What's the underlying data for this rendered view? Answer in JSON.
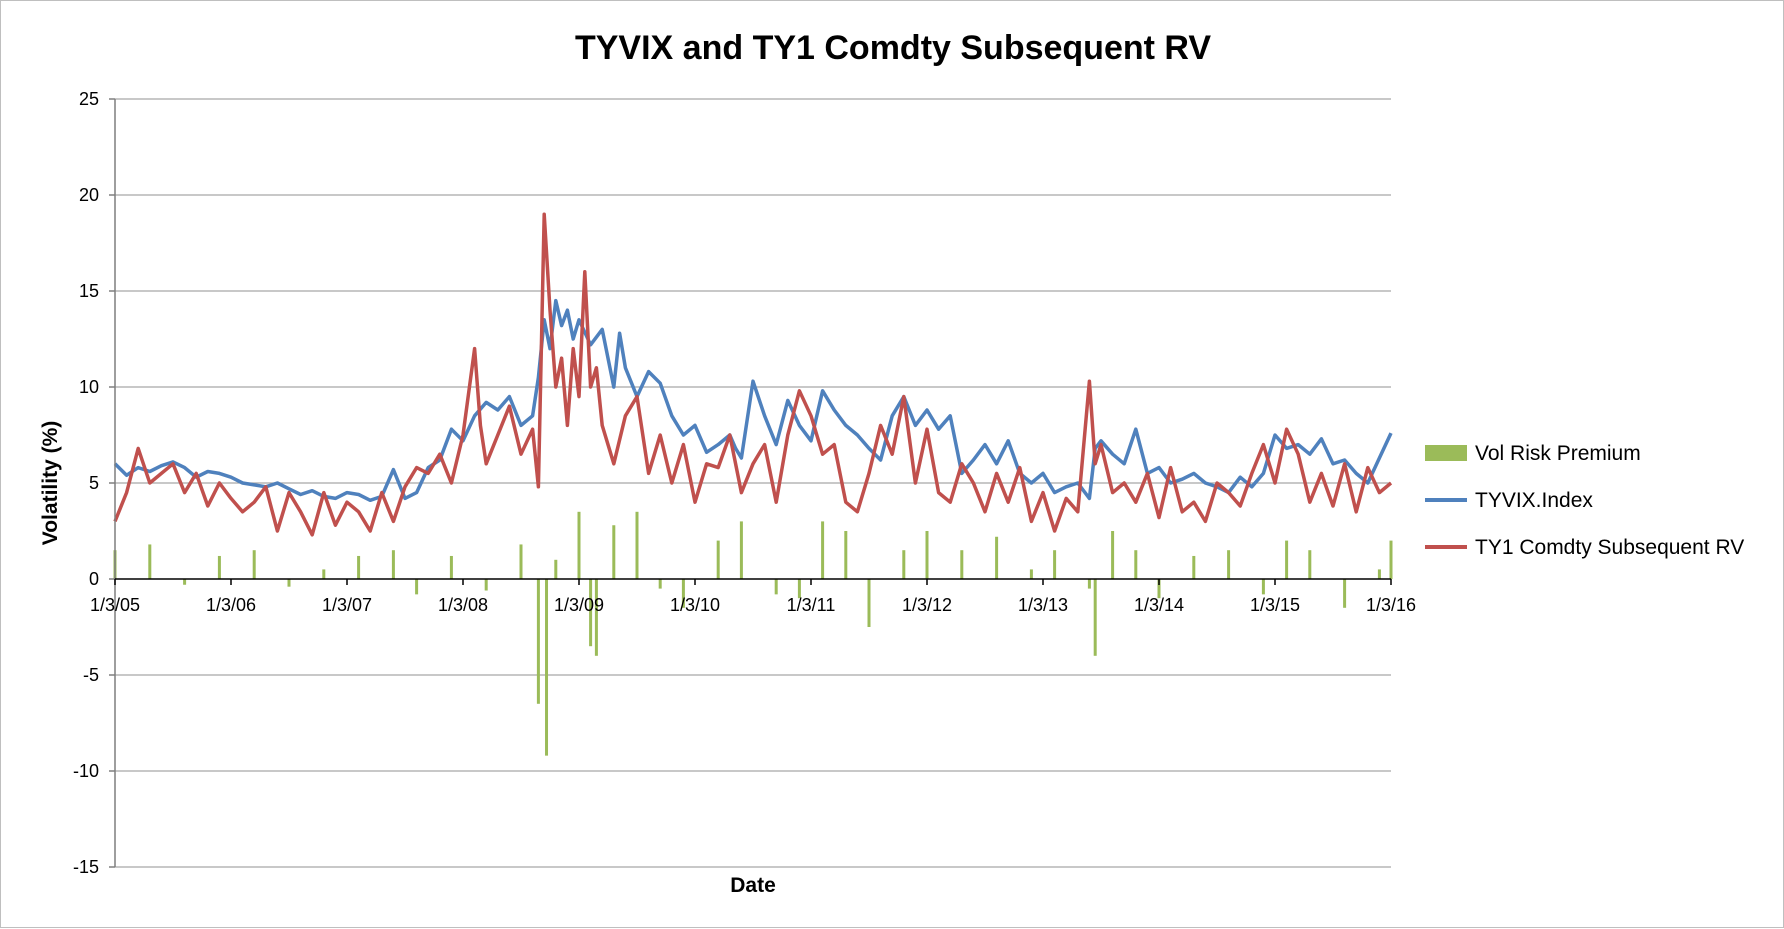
{
  "chart_data": {
    "type": "line",
    "title": "TYVIX and TY1 Comdty Subsequent RV",
    "xlabel": "Date",
    "ylabel": "Volatility (%)",
    "ylim": [
      -15,
      25
    ],
    "yticks": [
      "25",
      "20",
      "15",
      "10",
      "5",
      "0",
      "-5",
      "-10",
      "-15"
    ],
    "xlim": [
      2005.0,
      2016.0
    ],
    "xticks": [
      "1/3/05",
      "1/3/06",
      "1/3/07",
      "1/3/08",
      "1/3/09",
      "1/3/10",
      "1/3/11",
      "1/3/12",
      "1/3/13",
      "1/3/14",
      "1/3/15",
      "1/3/16"
    ],
    "grid": "horizontal",
    "legend_position": "right",
    "colors": {
      "vrp": "#9bbb59",
      "tyvix": "#4f81bd",
      "rv": "#c0504d",
      "grid": "#a6a6a6",
      "axis": "#7f7f7f"
    },
    "series": [
      {
        "name": "Vol Risk Premium",
        "kind": "bar",
        "x": [
          2005.0,
          2005.3,
          2005.6,
          2005.9,
          2006.2,
          2006.5,
          2006.8,
          2007.1,
          2007.4,
          2007.6,
          2007.9,
          2008.2,
          2008.5,
          2008.65,
          2008.72,
          2008.8,
          2009.0,
          2009.1,
          2009.15,
          2009.3,
          2009.5,
          2009.7,
          2009.9,
          2010.2,
          2010.4,
          2010.7,
          2010.9,
          2011.1,
          2011.3,
          2011.5,
          2011.8,
          2012.0,
          2012.3,
          2012.6,
          2012.9,
          2013.1,
          2013.4,
          2013.45,
          2013.6,
          2013.8,
          2014.0,
          2014.3,
          2014.6,
          2014.9,
          2015.1,
          2015.3,
          2015.6,
          2015.9,
          2016.0
        ],
        "values": [
          1.5,
          1.8,
          -0.3,
          1.2,
          1.5,
          -0.4,
          0.5,
          1.2,
          1.5,
          -0.8,
          1.2,
          -0.6,
          1.8,
          -6.5,
          -9.2,
          1.0,
          3.5,
          -3.5,
          -4.0,
          2.8,
          3.5,
          -0.5,
          -1.5,
          2.0,
          3.0,
          -0.8,
          -1.0,
          3.0,
          2.5,
          -2.5,
          1.5,
          2.5,
          1.5,
          2.2,
          0.5,
          1.5,
          -0.5,
          -4.0,
          2.5,
          1.5,
          -1.0,
          1.2,
          1.5,
          -0.8,
          2.0,
          1.5,
          -1.5,
          0.5,
          2.0
        ]
      },
      {
        "name": "TYVIX.Index",
        "kind": "line",
        "x": [
          2005.0,
          2005.1,
          2005.2,
          2005.3,
          2005.4,
          2005.5,
          2005.6,
          2005.7,
          2005.8,
          2005.9,
          2006.0,
          2006.1,
          2006.2,
          2006.3,
          2006.4,
          2006.5,
          2006.6,
          2006.7,
          2006.8,
          2006.9,
          2007.0,
          2007.1,
          2007.2,
          2007.3,
          2007.4,
          2007.5,
          2007.6,
          2007.7,
          2007.8,
          2007.9,
          2008.0,
          2008.1,
          2008.2,
          2008.3,
          2008.4,
          2008.5,
          2008.6,
          2008.65,
          2008.7,
          2008.75,
          2008.8,
          2008.85,
          2008.9,
          2008.95,
          2009.0,
          2009.1,
          2009.2,
          2009.3,
          2009.35,
          2009.4,
          2009.5,
          2009.6,
          2009.7,
          2009.8,
          2009.9,
          2010.0,
          2010.1,
          2010.2,
          2010.3,
          2010.35,
          2010.4,
          2010.5,
          2010.6,
          2010.7,
          2010.8,
          2010.9,
          2011.0,
          2011.1,
          2011.2,
          2011.3,
          2011.4,
          2011.5,
          2011.6,
          2011.7,
          2011.8,
          2011.9,
          2012.0,
          2012.1,
          2012.2,
          2012.3,
          2012.4,
          2012.5,
          2012.6,
          2012.7,
          2012.8,
          2012.9,
          2013.0,
          2013.1,
          2013.2,
          2013.3,
          2013.4,
          2013.45,
          2013.5,
          2013.6,
          2013.7,
          2013.8,
          2013.9,
          2014.0,
          2014.1,
          2014.2,
          2014.3,
          2014.4,
          2014.5,
          2014.6,
          2014.7,
          2014.8,
          2014.9,
          2015.0,
          2015.1,
          2015.2,
          2015.3,
          2015.4,
          2015.5,
          2015.6,
          2015.7,
          2015.8,
          2015.9,
          2016.0
        ],
        "values": [
          6.0,
          5.4,
          5.8,
          5.6,
          5.9,
          6.1,
          5.8,
          5.3,
          5.6,
          5.5,
          5.3,
          5.0,
          4.9,
          4.8,
          5.0,
          4.7,
          4.4,
          4.6,
          4.3,
          4.2,
          4.5,
          4.4,
          4.1,
          4.3,
          5.7,
          4.2,
          4.5,
          5.8,
          6.2,
          7.8,
          7.2,
          8.5,
          9.2,
          8.8,
          9.5,
          8.0,
          8.5,
          10.5,
          13.5,
          12.0,
          14.5,
          13.2,
          14.0,
          12.5,
          13.5,
          12.2,
          13.0,
          10.0,
          12.8,
          11.0,
          9.5,
          10.8,
          10.2,
          8.5,
          7.5,
          8.0,
          6.6,
          7.0,
          7.5,
          6.8,
          6.3,
          10.3,
          8.5,
          7.0,
          9.3,
          8.0,
          7.2,
          9.8,
          8.8,
          8.0,
          7.5,
          6.8,
          6.2,
          8.5,
          9.5,
          8.0,
          8.8,
          7.8,
          8.5,
          5.5,
          6.2,
          7.0,
          6.0,
          7.2,
          5.5,
          5.0,
          5.5,
          4.5,
          4.8,
          5.0,
          4.2,
          6.8,
          7.2,
          6.5,
          6.0,
          7.8,
          5.5,
          5.8,
          5.0,
          5.2,
          5.5,
          5.0,
          4.8,
          4.5,
          5.3,
          4.8,
          5.5,
          7.5,
          6.8,
          7.0,
          6.5,
          7.3,
          6.0,
          6.2,
          5.5,
          5.0,
          6.3,
          7.6
        ]
      },
      {
        "name": "TY1 Comdty Subsequent RV",
        "kind": "line",
        "x": [
          2005.0,
          2005.1,
          2005.2,
          2005.3,
          2005.4,
          2005.5,
          2005.6,
          2005.7,
          2005.8,
          2005.9,
          2006.0,
          2006.1,
          2006.2,
          2006.3,
          2006.4,
          2006.5,
          2006.6,
          2006.7,
          2006.8,
          2006.9,
          2007.0,
          2007.1,
          2007.2,
          2007.3,
          2007.4,
          2007.5,
          2007.6,
          2007.7,
          2007.8,
          2007.9,
          2008.0,
          2008.1,
          2008.15,
          2008.2,
          2008.3,
          2008.4,
          2008.5,
          2008.6,
          2008.65,
          2008.7,
          2008.75,
          2008.8,
          2008.85,
          2008.9,
          2008.95,
          2009.0,
          2009.05,
          2009.1,
          2009.15,
          2009.2,
          2009.3,
          2009.4,
          2009.5,
          2009.6,
          2009.7,
          2009.8,
          2009.9,
          2010.0,
          2010.1,
          2010.2,
          2010.3,
          2010.4,
          2010.5,
          2010.6,
          2010.7,
          2010.8,
          2010.9,
          2011.0,
          2011.1,
          2011.2,
          2011.3,
          2011.4,
          2011.5,
          2011.6,
          2011.7,
          2011.8,
          2011.9,
          2012.0,
          2012.1,
          2012.2,
          2012.3,
          2012.4,
          2012.5,
          2012.6,
          2012.7,
          2012.8,
          2012.9,
          2013.0,
          2013.1,
          2013.2,
          2013.3,
          2013.4,
          2013.45,
          2013.5,
          2013.6,
          2013.7,
          2013.8,
          2013.9,
          2014.0,
          2014.1,
          2014.2,
          2014.3,
          2014.4,
          2014.5,
          2014.6,
          2014.7,
          2014.8,
          2014.9,
          2015.0,
          2015.1,
          2015.2,
          2015.3,
          2015.4,
          2015.5,
          2015.6,
          2015.7,
          2015.8,
          2015.9,
          2016.0
        ],
        "values": [
          3.0,
          4.5,
          6.8,
          5.0,
          5.5,
          6.0,
          4.5,
          5.5,
          3.8,
          5.0,
          4.2,
          3.5,
          4.0,
          4.8,
          2.5,
          4.5,
          3.5,
          2.3,
          4.5,
          2.8,
          4.0,
          3.5,
          2.5,
          4.5,
          3.0,
          4.8,
          5.8,
          5.5,
          6.5,
          5.0,
          7.5,
          12.0,
          8.0,
          6.0,
          7.5,
          9.0,
          6.5,
          7.8,
          4.8,
          19.0,
          14.0,
          10.0,
          11.5,
          8.0,
          12.0,
          9.5,
          16.0,
          10.0,
          11.0,
          8.0,
          6.0,
          8.5,
          9.5,
          5.5,
          7.5,
          5.0,
          7.0,
          4.0,
          6.0,
          5.8,
          7.5,
          4.5,
          6.0,
          7.0,
          4.0,
          7.5,
          9.8,
          8.5,
          6.5,
          7.0,
          4.0,
          3.5,
          5.5,
          8.0,
          6.5,
          9.5,
          5.0,
          7.8,
          4.5,
          4.0,
          6.0,
          5.0,
          3.5,
          5.5,
          4.0,
          5.8,
          3.0,
          4.5,
          2.5,
          4.2,
          3.5,
          10.3,
          6.0,
          7.0,
          4.5,
          5.0,
          4.0,
          5.5,
          3.2,
          5.8,
          3.5,
          4.0,
          3.0,
          5.0,
          4.5,
          3.8,
          5.5,
          7.0,
          5.0,
          7.8,
          6.5,
          4.0,
          5.5,
          3.8,
          6.0,
          3.5,
          5.8,
          4.5,
          5.0
        ]
      }
    ]
  }
}
